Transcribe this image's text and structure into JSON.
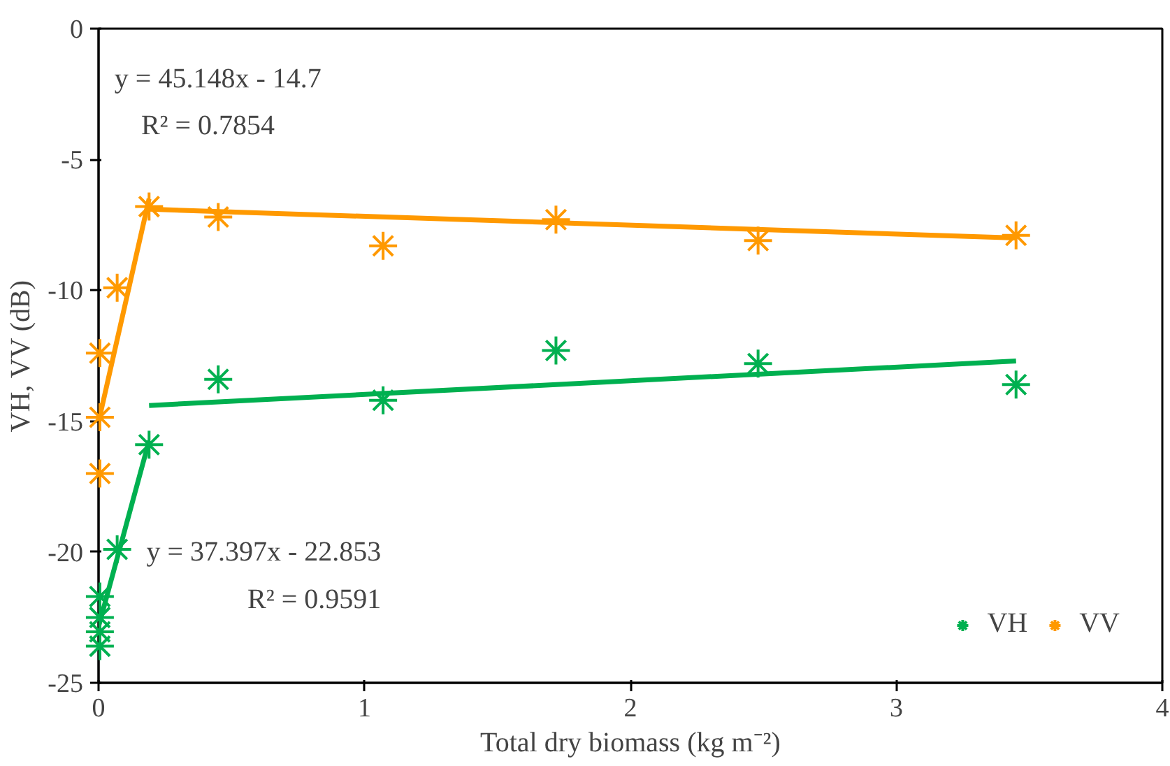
{
  "chart_data": {
    "type": "scatter",
    "xlabel": "Total dry biomass (kg m⁻²)",
    "ylabel": "VH, VV (dB)",
    "xlim": [
      0,
      4
    ],
    "ylim": [
      -25,
      0
    ],
    "xticks": [
      0,
      1,
      2,
      3,
      4
    ],
    "yticks": [
      -25,
      -20,
      -15,
      -10,
      -5,
      0
    ],
    "grid": false,
    "legend": "bottom right",
    "marker": "cross",
    "series": [
      {
        "name": "VH",
        "color": "#00b050",
        "x": [
          0.005,
          0.005,
          0.005,
          0.005,
          0.07,
          0.19,
          0.45,
          1.07,
          1.72,
          2.48,
          3.45
        ],
        "values": [
          -23.6,
          -21.7,
          -22.5,
          -23.05,
          -19.9,
          -15.9,
          -13.4,
          -14.2,
          -12.3,
          -12.8,
          -13.6
        ]
      },
      {
        "name": "VV",
        "color": "#ff9900",
        "x": [
          0.005,
          0.005,
          0.005,
          0.07,
          0.19,
          0.45,
          1.07,
          1.72,
          2.48,
          3.45
        ],
        "values": [
          -12.4,
          -14.85,
          -17.0,
          -9.9,
          -6.8,
          -7.2,
          -8.3,
          -7.3,
          -8.1,
          -7.9
        ]
      },
      {
        "type": "line",
        "marker": "none",
        "color": "#00b050",
        "x": [
          0.0,
          0.19
        ],
        "values": [
          -22.85,
          -15.75
        ]
      },
      {
        "type": "line",
        "marker": "none",
        "color": "#00b050",
        "x": [
          0.19,
          3.45
        ],
        "values": [
          -14.4,
          -12.7
        ]
      },
      {
        "type": "line",
        "marker": "none",
        "color": "#ff9900",
        "x": [
          0.005,
          0.19
        ],
        "values": [
          -14.8,
          -6.5
        ]
      },
      {
        "type": "line",
        "marker": "none",
        "color": "#ff9900",
        "x": [
          0.19,
          3.45
        ],
        "values": [
          -6.9,
          -8.0
        ]
      }
    ],
    "annotations": [
      "y = 45.148x - 14.7",
      "R² = 0.7854",
      "y = 37.397x - 22.853",
      "R² = 0.9591"
    ]
  }
}
